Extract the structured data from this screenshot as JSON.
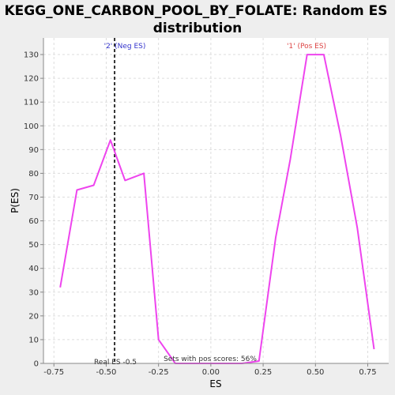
{
  "chart_data": {
    "type": "line",
    "title_lines": [
      "KEGG_ONE_CARBON_POOL_BY_FOLATE: Random ES",
      "distribution"
    ],
    "xlabel": "ES",
    "ylabel": "P(ES)",
    "xlim": [
      -0.8,
      0.85
    ],
    "ylim": [
      0,
      137
    ],
    "x_ticks": [
      -0.75,
      -0.5,
      -0.25,
      0.0,
      0.25,
      0.5,
      0.75
    ],
    "x_tick_labels": [
      "-0.75",
      "-0.50",
      "-0.25",
      "0.00",
      "0.25",
      "0.50",
      "0.75"
    ],
    "y_ticks": [
      0,
      10,
      20,
      30,
      40,
      50,
      60,
      70,
      80,
      90,
      100,
      110,
      120,
      130
    ],
    "y_tick_labels": [
      "0",
      "10",
      "20",
      "30",
      "40",
      "50",
      "60",
      "70",
      "80",
      "90",
      "100",
      "110",
      "120",
      "130"
    ],
    "grid": true,
    "series": [
      {
        "color": "#ee44ee",
        "x": [
          -0.72,
          -0.64,
          -0.56,
          -0.48,
          -0.41,
          -0.32,
          -0.25,
          -0.17,
          -0.09,
          0.0,
          0.08,
          0.15,
          0.23,
          0.31,
          0.38,
          0.46,
          0.54,
          0.62,
          0.7,
          0.78
        ],
        "y": [
          32,
          73,
          75,
          94,
          77,
          80,
          10,
          0,
          0,
          0,
          0,
          0,
          1,
          53,
          86,
          130,
          130,
          96,
          57,
          6
        ]
      }
    ],
    "real_es": {
      "x": -0.46,
      "label": "Real ES -0.5",
      "color": "#333333"
    },
    "annotations": {
      "neg_label": "'2' (Neg ES)",
      "neg_color": "#3333cc",
      "pos_label": "'1' (Pos ES)",
      "pos_color": "#dd4444",
      "pos_score_text": "Sets with pos scores: 56%"
    }
  }
}
